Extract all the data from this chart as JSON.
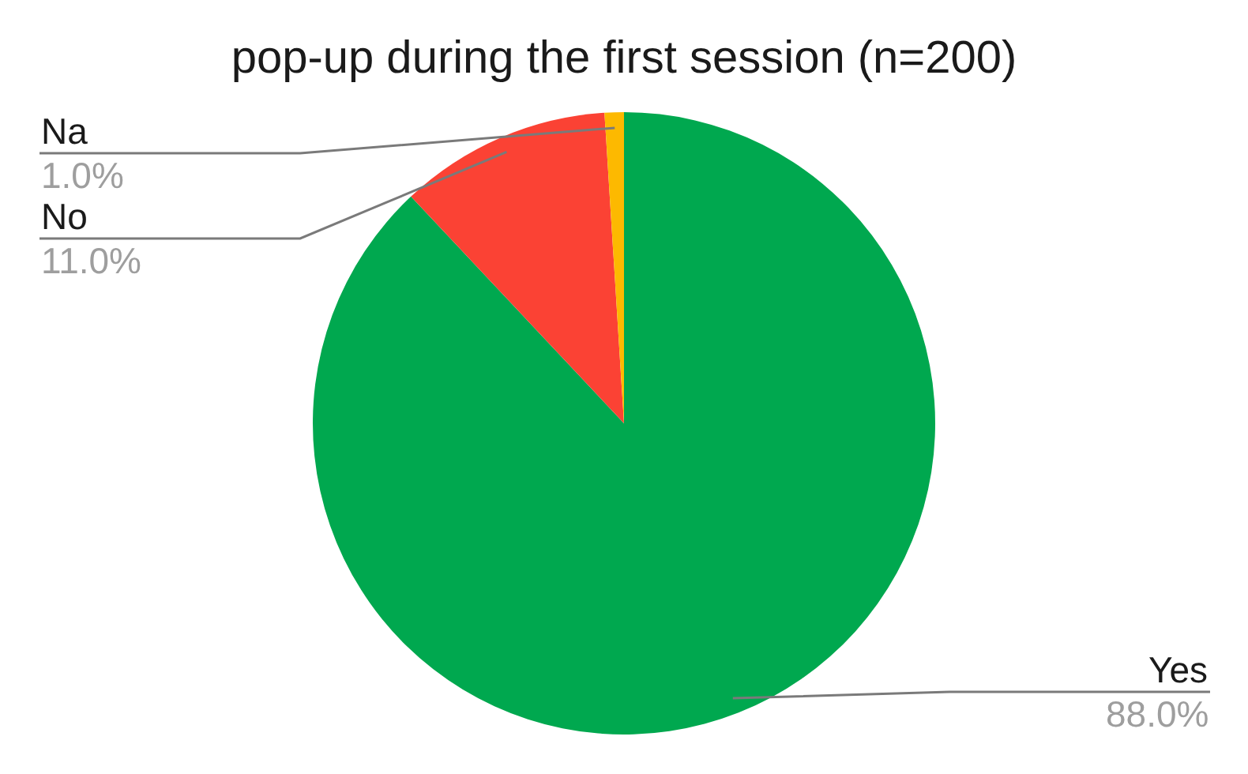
{
  "chart_data": {
    "type": "pie",
    "title": "pop-up during the first session (n=200)",
    "categories": [
      "Yes",
      "No",
      "Na"
    ],
    "values": [
      88.0,
      11.0,
      1.0
    ],
    "colors": [
      "#00a84f",
      "#fb4234",
      "#fdb900"
    ],
    "value_labels": [
      "88.0%",
      "11.0%",
      "1.0%"
    ]
  }
}
